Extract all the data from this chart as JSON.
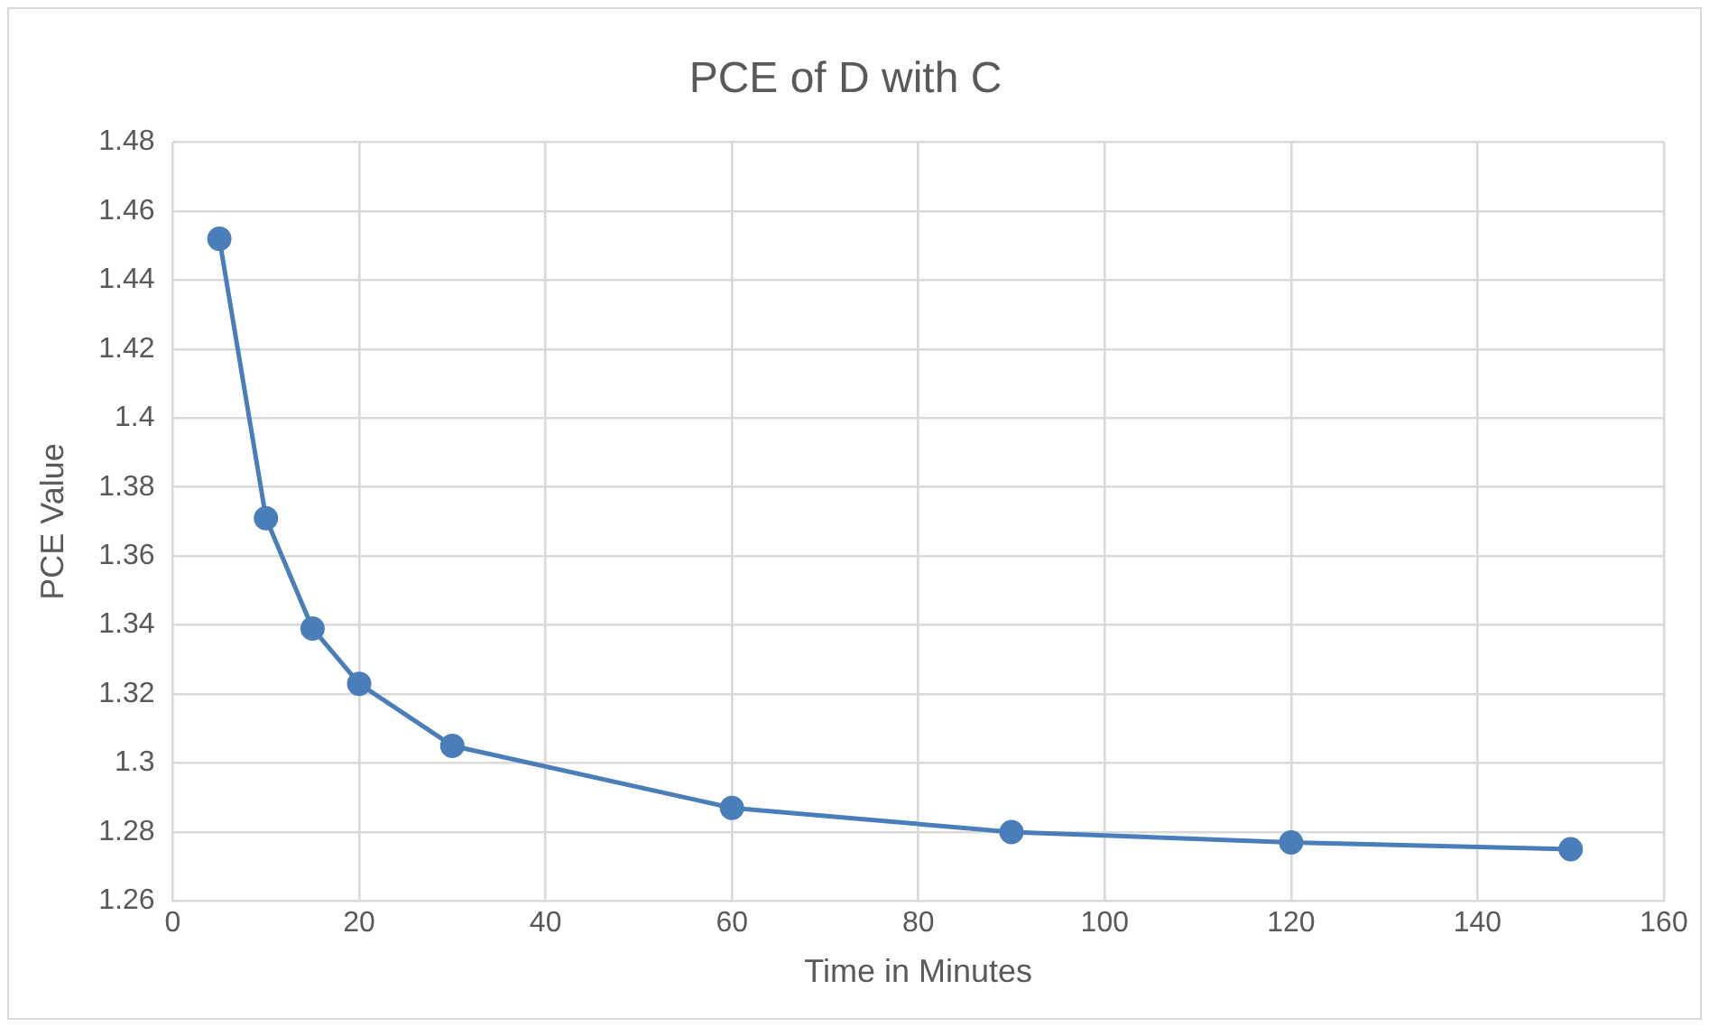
{
  "chart_data": {
    "type": "line",
    "title": "PCE of D with C",
    "xlabel": "Time in Minutes",
    "ylabel": "PCE Value",
    "x": [
      5,
      10,
      15,
      20,
      30,
      60,
      90,
      120,
      150
    ],
    "series": [
      {
        "color": "#4a7ebb",
        "values": [
          1.452,
          1.371,
          1.339,
          1.323,
          1.305,
          1.287,
          1.28,
          1.277,
          1.275
        ]
      }
    ],
    "xlim": [
      0,
      160
    ],
    "xticks": [
      0,
      20,
      40,
      60,
      80,
      100,
      120,
      140,
      160
    ],
    "ylim": [
      1.26,
      1.48
    ],
    "yticks": [
      1.26,
      1.28,
      1.3,
      1.32,
      1.34,
      1.36,
      1.38,
      1.4,
      1.42,
      1.44,
      1.46,
      1.48
    ],
    "grid": true,
    "legend": false,
    "marker": "circle",
    "line_style": "solid"
  }
}
